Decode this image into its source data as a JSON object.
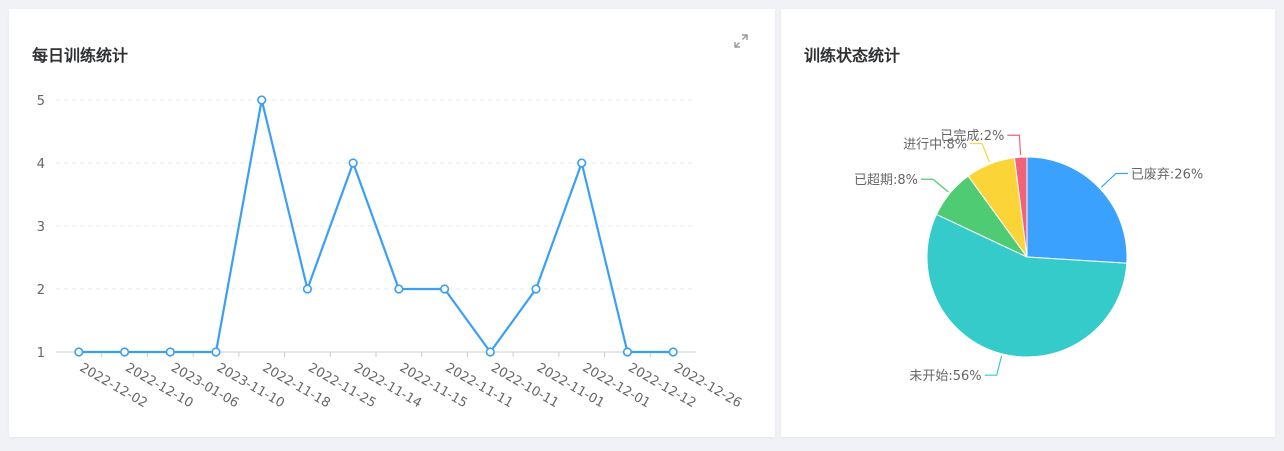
{
  "left_panel": {
    "title": "每日训练统计",
    "expand_icon": "expand-icon"
  },
  "right_panel": {
    "title": "训练状态统计"
  },
  "colors": {
    "line": "#3a9ff5",
    "axis": "#cccccc",
    "grid": "#e8e8e8",
    "label": "#666666",
    "pie": [
      "#3aa1ff",
      "#36cbcb",
      "#4ecb73",
      "#fbd437",
      "#f2637b"
    ]
  },
  "chart_data": [
    {
      "type": "line",
      "title": "每日训练统计",
      "categories": [
        "2022-12-02",
        "2022-12-10",
        "2023-01-06",
        "2023-11-10",
        "2022-11-18",
        "2022-11-25",
        "2022-11-14",
        "2022-11-15",
        "2022-11-11",
        "2022-10-11",
        "2022-11-01",
        "2022-12-01",
        "2022-12-12",
        "2022-12-26"
      ],
      "values": [
        1,
        1,
        1,
        1,
        5,
        2,
        4,
        2,
        2,
        1,
        2,
        4,
        1,
        1
      ],
      "yticks": [
        "1",
        "2",
        "3",
        "4",
        "5"
      ],
      "ylim": [
        1,
        5
      ],
      "grid": true,
      "xlabel": "",
      "ylabel": ""
    },
    {
      "type": "pie",
      "title": "训练状态统计",
      "slices": [
        {
          "name": "已废弃",
          "value": 26,
          "label": "已废弃:26%"
        },
        {
          "name": "未开始",
          "value": 56,
          "label": "未开始:56%"
        },
        {
          "name": "已超期",
          "value": 8,
          "label": "已超期:8%"
        },
        {
          "name": "进行中",
          "value": 8,
          "label": "进行中:8%"
        },
        {
          "name": "已完成",
          "value": 2,
          "label": "已完成:2%"
        }
      ]
    }
  ]
}
